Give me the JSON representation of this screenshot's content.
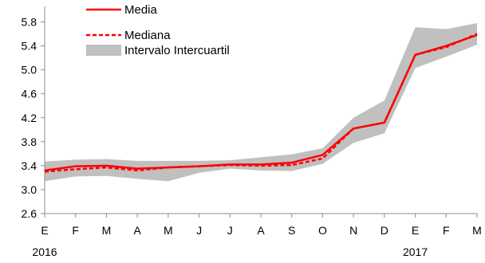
{
  "chart_data": {
    "type": "line",
    "title": "",
    "xlabel": "",
    "ylabel": "",
    "categories": [
      "E",
      "F",
      "M",
      "A",
      "M",
      "J",
      "J",
      "A",
      "S",
      "O",
      "N",
      "D",
      "E",
      "F",
      "M"
    ],
    "year_labels": [
      {
        "index": 0,
        "label": "2016"
      },
      {
        "index": 12,
        "label": "2017"
      }
    ],
    "ylim": [
      2.6,
      5.9
    ],
    "yticks": [
      "2.6",
      "3.0",
      "3.4",
      "3.8",
      "4.2",
      "4.6",
      "5.0",
      "5.4",
      "5.8"
    ],
    "grid": false,
    "legend_position": "top-left",
    "series": [
      {
        "name": "Media",
        "style": "solid",
        "color": "#ff0000",
        "values": [
          3.32,
          3.39,
          3.4,
          3.35,
          3.37,
          3.39,
          3.42,
          3.42,
          3.45,
          3.58,
          4.02,
          4.12,
          5.25,
          5.4,
          5.58
        ]
      },
      {
        "name": "Mediana",
        "style": "dashed",
        "color": "#ff0000",
        "values": [
          3.3,
          3.34,
          3.37,
          3.32,
          3.37,
          3.39,
          3.41,
          3.4,
          3.41,
          3.52,
          4.02,
          4.12,
          5.25,
          5.38,
          5.6
        ]
      }
    ],
    "band": {
      "name": "Intervalo Intercuartil",
      "color": "#c0c0c0",
      "lower": [
        3.14,
        3.22,
        3.23,
        3.18,
        3.14,
        3.28,
        3.35,
        3.32,
        3.31,
        3.43,
        3.78,
        3.94,
        5.03,
        5.22,
        5.42
      ],
      "upper": [
        3.47,
        3.5,
        3.51,
        3.48,
        3.48,
        3.48,
        3.49,
        3.54,
        3.59,
        3.69,
        4.2,
        4.49,
        5.71,
        5.68,
        5.78
      ]
    }
  }
}
